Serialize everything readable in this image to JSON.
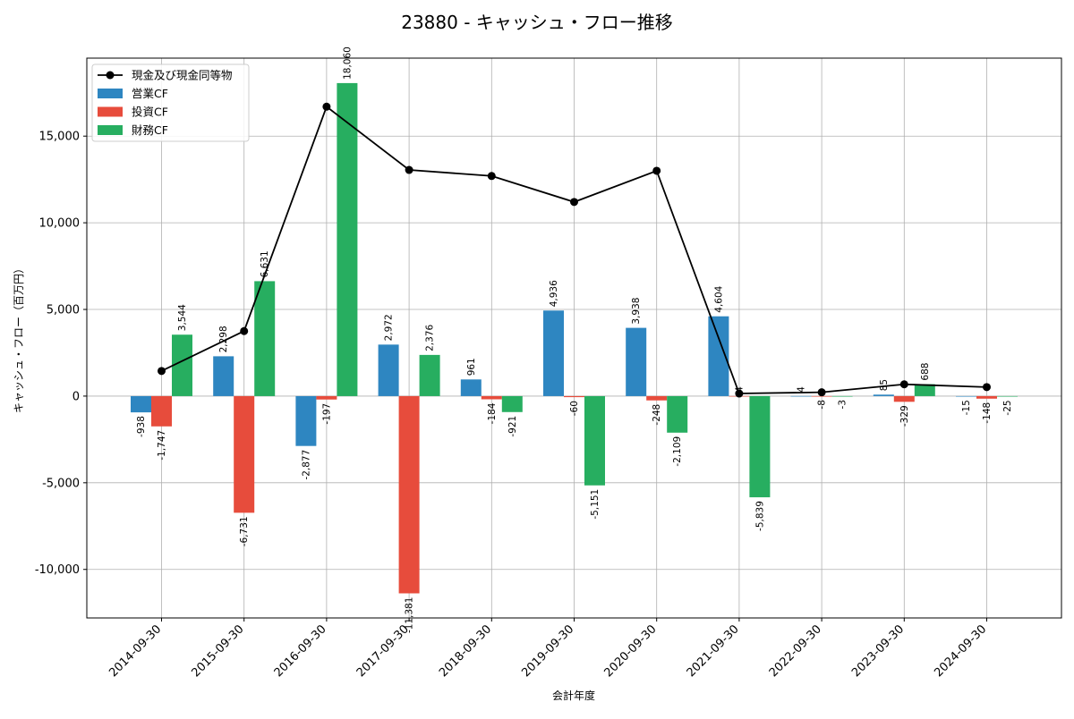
{
  "chart_data": {
    "type": "bar",
    "title": "23880 - キャッシュ・フロー推移",
    "xlabel": "会計年度",
    "ylabel": "キャッシュ・フロー（百万円）",
    "categories": [
      "2014-09-30",
      "2015-09-30",
      "2016-09-30",
      "2017-09-30",
      "2018-09-30",
      "2019-09-30",
      "2020-09-30",
      "2021-09-30",
      "2022-09-30",
      "2023-09-30",
      "2024-09-30"
    ],
    "ylim": [
      -12800,
      19500
    ],
    "yticks": [
      -10000,
      -5000,
      0,
      5000,
      10000,
      15000
    ],
    "ytick_labels": [
      "-10,000",
      "-5,000",
      "0",
      "5,000",
      "10,000",
      "15,000"
    ],
    "grid": true,
    "legend_position": "top-left",
    "series": [
      {
        "name": "営業CF",
        "kind": "bar",
        "color": "#2e86c1",
        "values": [
          -938,
          2298,
          -2877,
          2972,
          961,
          4936,
          3938,
          4604,
          4,
          85,
          -15
        ],
        "labels": [
          "-938",
          "2,298",
          "-2,877",
          "2,972",
          "961",
          "4,936",
          "3,938",
          "4,604",
          "4",
          "85",
          "-15"
        ]
      },
      {
        "name": "投資CF",
        "kind": "bar",
        "color": "#e74c3c",
        "values": [
          -1747,
          -6731,
          -197,
          -11381,
          -184,
          -60,
          -248,
          4,
          -8,
          -329,
          -148
        ],
        "labels": [
          "-1,747",
          "-6,731",
          "-197",
          "-11,381",
          "-184",
          "-60",
          "-248",
          "4",
          "-8",
          "-329",
          "-148"
        ]
      },
      {
        "name": "財務CF",
        "kind": "bar",
        "color": "#27ae60",
        "values": [
          3544,
          6631,
          18060,
          2376,
          -921,
          -5151,
          -2109,
          -5839,
          -3,
          688,
          -25
        ],
        "labels": [
          "3,544",
          "6,631",
          "18,060",
          "2,376",
          "-921",
          "-5,151",
          "-2,109",
          "-5,839",
          "-3",
          "688",
          "-25"
        ]
      },
      {
        "name": "現金及び現金同等物",
        "kind": "line",
        "color": "#000000",
        "values": [
          1450,
          3750,
          16700,
          13050,
          12700,
          11200,
          13000,
          150,
          220,
          680,
          520
        ]
      }
    ]
  }
}
